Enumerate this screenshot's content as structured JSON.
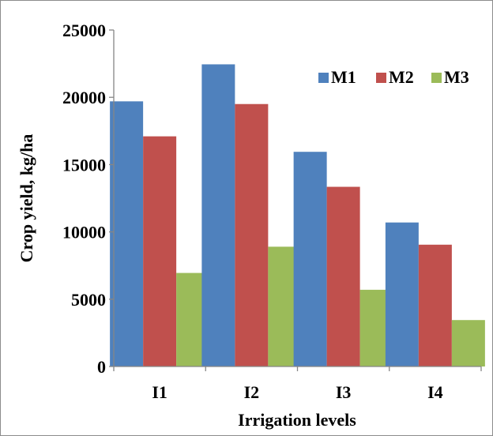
{
  "chart_data": {
    "type": "bar",
    "title": "",
    "xlabel": "Irrigation levels",
    "ylabel": "Crop yield,  kg/ha",
    "categories": [
      "I1",
      "I2",
      "I3",
      "I4"
    ],
    "series": [
      {
        "name": "M1",
        "color": "#4f81bd",
        "values": [
          19700,
          22450,
          15950,
          10700
        ]
      },
      {
        "name": "M2",
        "color": "#c0504d",
        "values": [
          17100,
          19500,
          13350,
          9050
        ]
      },
      {
        "name": "M3",
        "color": "#9bbb59",
        "values": [
          6950,
          8900,
          5700,
          3450
        ]
      }
    ],
    "ylim": [
      0,
      25000
    ],
    "yticks": [
      "0",
      "5000",
      "10000",
      "15000",
      "20000",
      "25000"
    ],
    "grid": false,
    "legend_position": "top-right"
  }
}
